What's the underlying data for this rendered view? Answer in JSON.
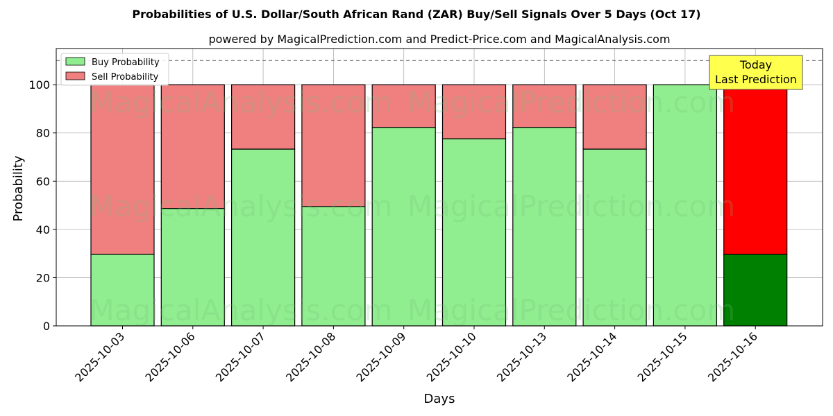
{
  "title": "Probabilities of U.S. Dollar/South African Rand (ZAR) Buy/Sell Signals Over 5 Days (Oct 17)",
  "subtitle": "powered by MagicalPrediction.com and Predict-Price.com and MagicalAnalysis.com",
  "watermarks": [
    "MagicalAnalysis.com",
    "MagicalPrediction.com"
  ],
  "annotation": {
    "line1": "Today",
    "line2": "Last Prediction"
  },
  "colors": {
    "buy": "#90ee90",
    "sell": "#f08080",
    "buy_today": "#008000",
    "sell_today": "#ff0000",
    "annotation_bg": "#ffff4d"
  },
  "chart_data": {
    "type": "bar",
    "stacked": true,
    "xlabel": "Days",
    "ylabel": "Probability",
    "ylim": [
      0,
      115
    ],
    "yticks": [
      0,
      20,
      40,
      60,
      80,
      100
    ],
    "reference_line": 110,
    "grid": true,
    "legend_placement": "top-left",
    "categories": [
      "2025-10-03",
      "2025-10-06",
      "2025-10-07",
      "2025-10-08",
      "2025-10-09",
      "2025-10-10",
      "2025-10-13",
      "2025-10-14",
      "2025-10-15",
      "2025-10-16"
    ],
    "series": [
      {
        "name": "Buy Probability",
        "values": [
          29.7,
          48.7,
          73.3,
          49.5,
          82.3,
          77.6,
          82.3,
          73.3,
          100.0,
          29.7
        ]
      },
      {
        "name": "Sell Probability",
        "values": [
          70.3,
          51.3,
          26.7,
          50.5,
          17.7,
          22.4,
          17.7,
          26.7,
          0.0,
          70.3
        ]
      }
    ]
  }
}
